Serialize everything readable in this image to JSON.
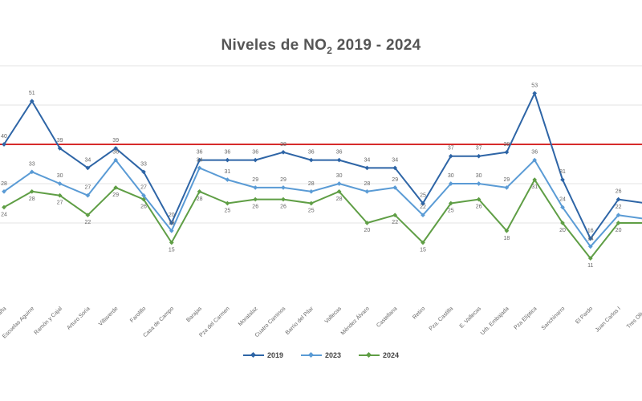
{
  "chart_data": {
    "type": "line",
    "title_main": "Niveles de NO",
    "title_sub": "2",
    "title_rest": " 2019 - 2024",
    "ylim": [
      0,
      60
    ],
    "grid": true,
    "legend_position": "bottom",
    "reference_line": {
      "value": 40,
      "color": "#d62b2b"
    },
    "categories": [
      "Plaza de España",
      "Escuelas Aguirre",
      "Ramón y Cajal",
      "Arturo Soria",
      "Villaverde",
      "Farolillo",
      "Casa de Campo",
      "Barajas",
      "Pza del Carmen",
      "Moratalaz",
      "Cuatro Caminos",
      "Barrio del Pilar",
      "Vallecas",
      "Méndez Álvaro",
      "Castellana",
      "Retiro",
      "Pza. Castilla",
      "E. Vallecas",
      "Urb. Embajada",
      "Pza Elíptica",
      "Sanchinarro",
      "El Pardo",
      "Juan Carlos I",
      "Tres Olivos"
    ],
    "series": [
      {
        "name": "2019",
        "color": "#2e65a6",
        "values": [
          40,
          51,
          39,
          34,
          39,
          33,
          20,
          36,
          36,
          36,
          38,
          36,
          36,
          34,
          34,
          25,
          37,
          37,
          38,
          53,
          31,
          16,
          26,
          25
        ]
      },
      {
        "name": "2023",
        "color": "#5a9bd5",
        "values": [
          28,
          33,
          30,
          27,
          36,
          27,
          18,
          34,
          31,
          29,
          29,
          28,
          30,
          28,
          29,
          22,
          30,
          30,
          29,
          36,
          24,
          14,
          22,
          21
        ]
      },
      {
        "name": "2024",
        "color": "#5f9e45",
        "values": [
          24,
          28,
          27,
          22,
          29,
          26,
          15,
          28,
          25,
          26,
          26,
          25,
          28,
          20,
          22,
          15,
          25,
          26,
          18,
          31,
          20,
          11,
          20,
          20
        ]
      }
    ]
  }
}
